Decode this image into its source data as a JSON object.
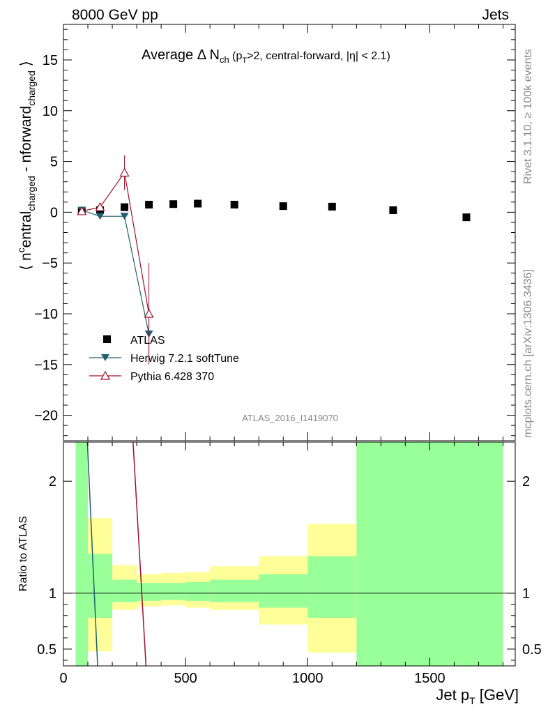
{
  "header": {
    "left": "8000 GeV pp",
    "right": "Jets"
  },
  "side_labels": {
    "rivet": "Rivet 3.1.10, ≥ 100k events",
    "mcplots": "mcplots.cern.ch [arXiv:1306.3436]"
  },
  "watermark": "ATLAS_2016_I1419070",
  "chart_data": [
    {
      "type": "scatter",
      "panel": "main",
      "title": "Average Δ N_ch (p_T>2, central-forward, |η| < 2.1)",
      "title_parts": {
        "a": "Average ",
        "delta": "Δ",
        "n": " N",
        "sub_ch": "ch",
        "open": " (p",
        "sub_T": "T",
        "rest": ">2, central-forward, |η| < 2.1)"
      },
      "ylabel": "⟨ n^central_charged - n^forward_charged ⟩",
      "ylabel_parts": {
        "open": "⟨ n",
        "sup": "c",
        "a": "entral",
        "sub1": "charged",
        "mid": " - n",
        "b": "forward",
        "sub2": "charged",
        "close": " ⟩"
      },
      "xlim": [
        0,
        1850
      ],
      "ylim": [
        -22.5,
        18.5
      ],
      "x_ticks": [
        0,
        500,
        1000,
        1500
      ],
      "y_ticks": [
        -20,
        -15,
        -10,
        -5,
        0,
        5,
        10,
        15
      ],
      "y_tick_labels": [
        "−20",
        "−15",
        "−10",
        "−5",
        "0",
        "5",
        "10",
        "15"
      ],
      "legend": {
        "position": "lower-left",
        "entries": [
          "ATLAS",
          "Herwig 7.2.1 softTune",
          "Pythia 6.428 370"
        ]
      },
      "series": [
        {
          "name": "ATLAS",
          "marker": "square",
          "color": "#000000",
          "x": [
            75,
            150,
            250,
            350,
            450,
            550,
            700,
            900,
            1100,
            1350,
            1650
          ],
          "y": [
            0.1,
            0.2,
            0.5,
            0.75,
            0.8,
            0.85,
            0.75,
            0.6,
            0.55,
            0.2,
            -0.5
          ],
          "err": [
            0.2,
            0.2,
            0.2,
            0.2,
            0.2,
            0.2,
            0.2,
            0.2,
            0.2,
            0.2,
            0.3
          ]
        },
        {
          "name": "Herwig 7.2.1 softTune",
          "marker": "triangle-down",
          "color": "#1f5f6e",
          "x": [
            75,
            150,
            250,
            350
          ],
          "y": [
            0.2,
            -0.4,
            -0.4,
            -12.0
          ],
          "err": [
            0.3,
            0.3,
            0.3,
            2.8
          ]
        },
        {
          "name": "Pythia 6.428 370",
          "marker": "triangle-up-open",
          "color": "#a0102a",
          "x": [
            75,
            150,
            250,
            350
          ],
          "y": [
            0.1,
            0.5,
            3.9,
            -10.0
          ],
          "err": [
            0.3,
            0.3,
            1.7,
            5.0
          ]
        }
      ]
    },
    {
      "type": "area",
      "panel": "ratio",
      "ylabel": "Ratio to ATLAS",
      "xlabel": "Jet p_T [GeV]",
      "xlabel_parts": {
        "a": "Jet p",
        "sub": "T",
        "b": " [GeV]"
      },
      "xlim": [
        0,
        1850
      ],
      "ylim": [
        0.35,
        2.35
      ],
      "y_ticks": [
        0.5,
        1,
        2
      ],
      "y_tick_labels": [
        "0.5",
        "1",
        "2"
      ],
      "x_ticks": [
        0,
        500,
        1000,
        1500
      ],
      "x_tick_labels": [
        "0",
        "500",
        "1000",
        "1500"
      ],
      "bins": [
        {
          "x0": 50,
          "x1": 100,
          "green": [
            0.35,
            2.35
          ],
          "yellow": [
            0.35,
            2.35
          ]
        },
        {
          "x0": 100,
          "x1": 200,
          "green": [
            0.78,
            1.35
          ],
          "yellow": [
            0.48,
            1.67
          ]
        },
        {
          "x0": 200,
          "x1": 300,
          "green": [
            0.92,
            1.12
          ],
          "yellow": [
            0.85,
            1.25
          ]
        },
        {
          "x0": 300,
          "x1": 400,
          "green": [
            0.93,
            1.09
          ],
          "yellow": [
            0.88,
            1.17
          ]
        },
        {
          "x0": 400,
          "x1": 500,
          "green": [
            0.94,
            1.09
          ],
          "yellow": [
            0.89,
            1.18
          ]
        },
        {
          "x0": 500,
          "x1": 600,
          "green": [
            0.93,
            1.1
          ],
          "yellow": [
            0.87,
            1.19
          ]
        },
        {
          "x0": 600,
          "x1": 800,
          "green": [
            0.92,
            1.12
          ],
          "yellow": [
            0.85,
            1.24
          ]
        },
        {
          "x0": 800,
          "x1": 1000,
          "green": [
            0.87,
            1.17
          ],
          "yellow": [
            0.72,
            1.33
          ]
        },
        {
          "x0": 1000,
          "x1": 1200,
          "green": [
            0.78,
            1.33
          ],
          "yellow": [
            0.47,
            1.62
          ]
        },
        {
          "x0": 1200,
          "x1": 1800,
          "green": [
            0.35,
            2.35
          ],
          "yellow": [
            0.35,
            2.35
          ]
        }
      ],
      "band_colors": {
        "green": "#99ff99",
        "yellow": "#ffff99"
      },
      "lines": [
        {
          "name": "Herwig 7.2.1 softTune",
          "color": "#1f5f6e",
          "x": [
            98,
            140
          ],
          "y": [
            2.35,
            0.35
          ]
        },
        {
          "name": "Pythia 6.428 370",
          "color": "#a0102a",
          "x": [
            285,
            338
          ],
          "y": [
            2.35,
            0.35
          ]
        }
      ]
    }
  ]
}
